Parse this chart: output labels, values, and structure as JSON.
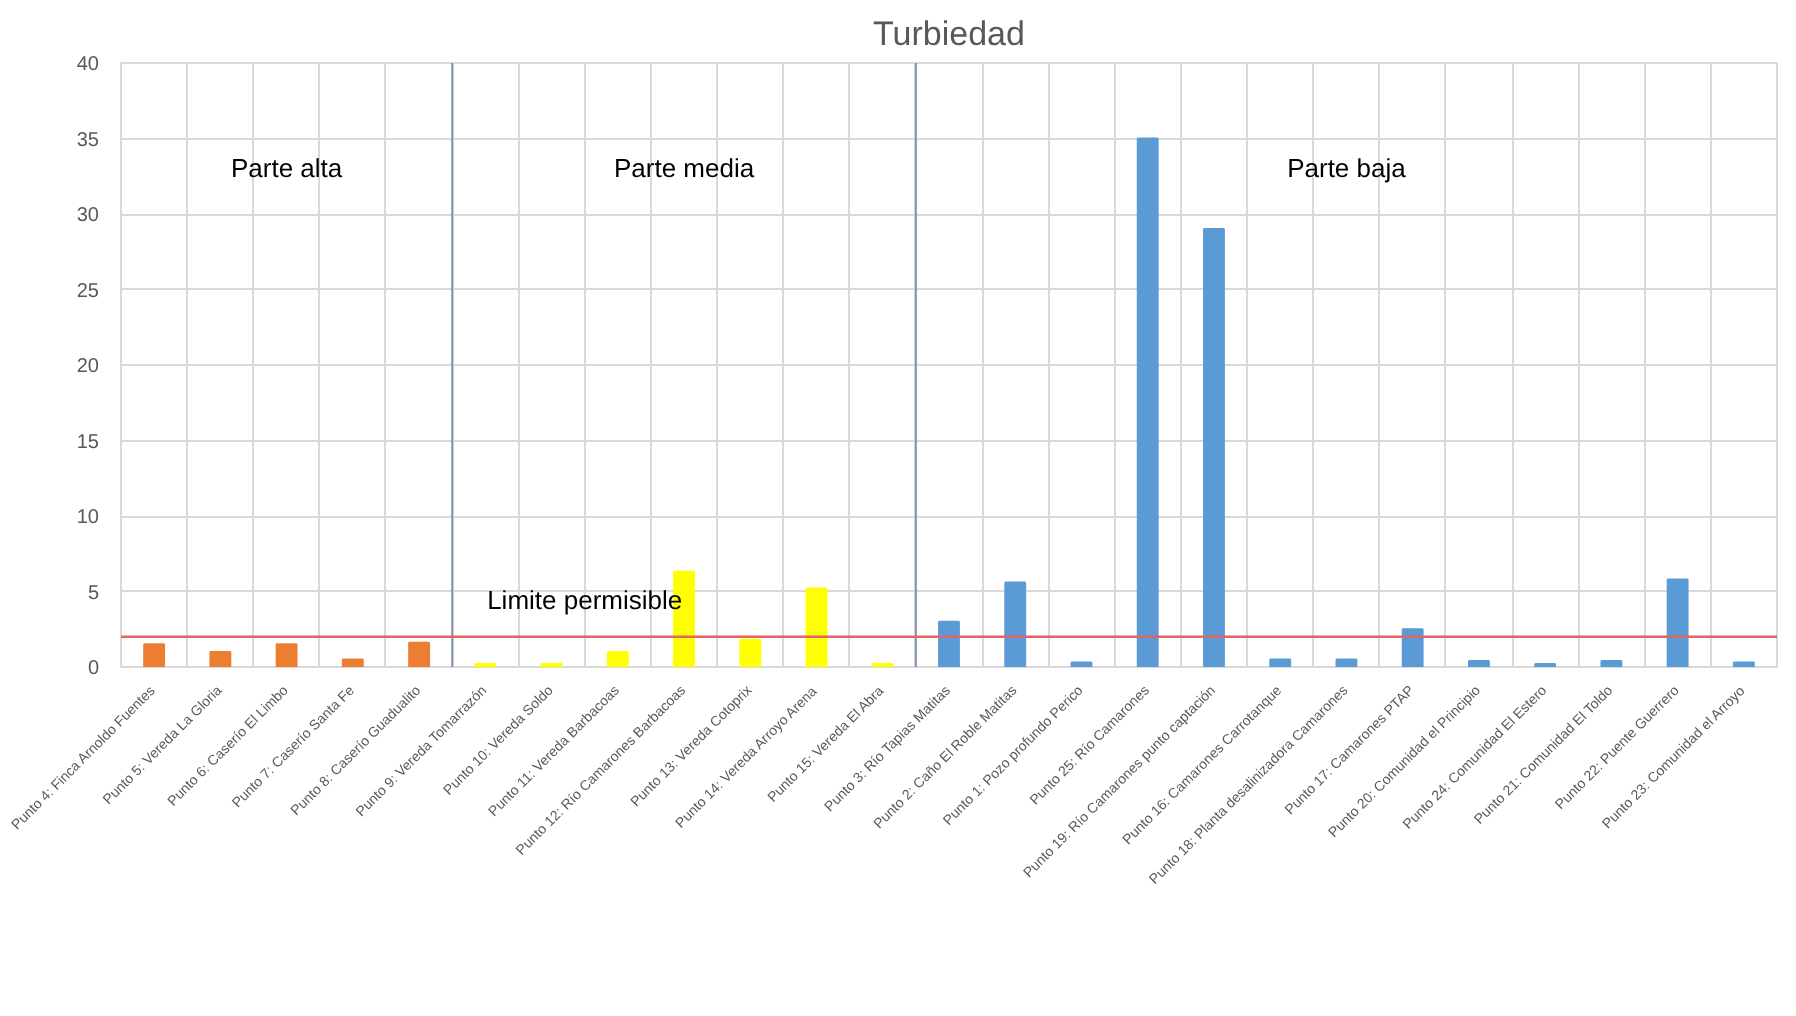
{
  "chart_data": {
    "type": "bar",
    "title": "Turbiedad",
    "categories": [
      "Punto 4: Finca Arnoldo Fuentes",
      "Punto 5: Vereda La Gloria",
      "Punto 6: Caserío El Limbo",
      "Punto 7: Caserío Santa Fe",
      "Punto 8: Caserío Guadualito",
      "Punto 9: Vereda Tomarrazón",
      "Punto 10: Vereda Soldo",
      "Punto 11: Vereda Barbacoas",
      "Punto 12: Río Camarones Barbacoas",
      "Punto 13: Vereda Cotoprix",
      "Punto 14: Vereda Arroyo Arena",
      "Punto 15: Vereda El Abra",
      "Punto 3: Río Tapias Matitas",
      "Punto 2: Caño El Roble Matitas",
      "Punto 1: Pozo profundo Perico",
      "Punto 25: Río Camarones",
      "Punto 19: Río Camarones punto captación",
      "Punto 16: Camarones Carrotanque",
      "Punto 18: Planta desalinizadora Camarones",
      "Punto 17: Camarones PTAP",
      "Punto 20: Comunidad el Principio",
      "Punto 24: Comunidad El Estero",
      "Punto 21: Comunidad El Toldo",
      "Punto 22: Puente Guerrero",
      "Punto 23: Comunidad el Arroyo"
    ],
    "values": [
      1.5,
      1.0,
      1.5,
      0.5,
      1.6,
      0.2,
      0.2,
      1.0,
      6.3,
      1.8,
      5.2,
      0.2,
      3.0,
      5.6,
      0.3,
      35,
      29,
      0.5,
      0.5,
      2.5,
      0.4,
      0.2,
      0.4,
      5.8,
      0.3
    ],
    "colors": [
      "#ed7d31",
      "#ed7d31",
      "#ed7d31",
      "#ed7d31",
      "#ed7d31",
      "#ffff00",
      "#ffff00",
      "#ffff00",
      "#ffff00",
      "#ffff00",
      "#ffff00",
      "#ffff00",
      "#5b9bd5",
      "#5b9bd5",
      "#5b9bd5",
      "#5b9bd5",
      "#5b9bd5",
      "#5b9bd5",
      "#5b9bd5",
      "#5b9bd5",
      "#5b9bd5",
      "#5b9bd5",
      "#5b9bd5",
      "#5b9bd5",
      "#5b9bd5"
    ],
    "ylim": [
      0,
      40
    ],
    "yticks": [
      0,
      5,
      10,
      15,
      20,
      25,
      30,
      35,
      40
    ],
    "grid": true,
    "ref_lines": [
      {
        "axis": "y",
        "value": 2,
        "label": "Limite permisible",
        "color": "#e06666"
      }
    ],
    "annotations": [
      "Parte alta",
      "Parte media",
      "Parte baja"
    ]
  }
}
